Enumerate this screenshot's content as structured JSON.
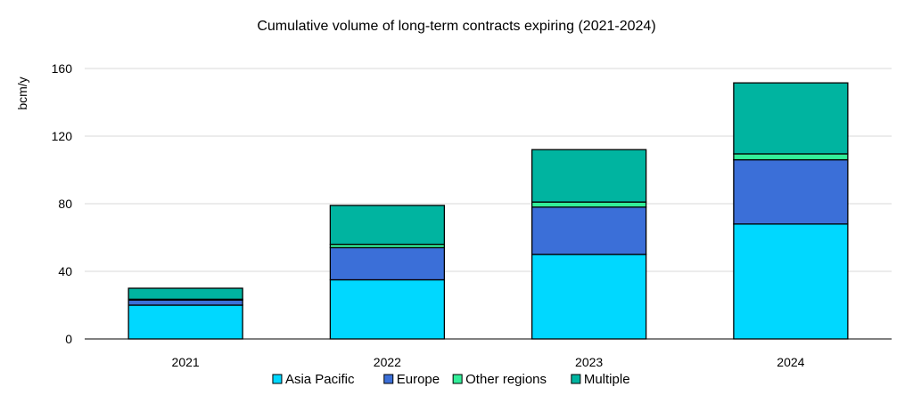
{
  "chart_data": {
    "type": "bar",
    "stacked": true,
    "title": "Cumulative volume of long-term contracts expiring (2021-2024)",
    "xlabel": "",
    "ylabel": "bcm/y",
    "categories": [
      "2021",
      "2022",
      "2023",
      "2024"
    ],
    "ylim": [
      0,
      160
    ],
    "yticks": [
      0,
      40,
      80,
      120,
      160
    ],
    "grid": true,
    "legend_position": "bottom",
    "series": [
      {
        "name": "Asia Pacific",
        "color": "#00d8ff",
        "values": [
          20,
          35,
          50,
          68
        ]
      },
      {
        "name": "Europe",
        "color": "#3b6fd8",
        "values": [
          3,
          19,
          28,
          38
        ]
      },
      {
        "name": "Other regions",
        "color": "#33ee99",
        "values": [
          0.5,
          2,
          3,
          3.5
        ]
      },
      {
        "name": "Multiple",
        "color": "#00b4a0",
        "values": [
          6.5,
          23,
          31,
          42
        ]
      }
    ]
  }
}
